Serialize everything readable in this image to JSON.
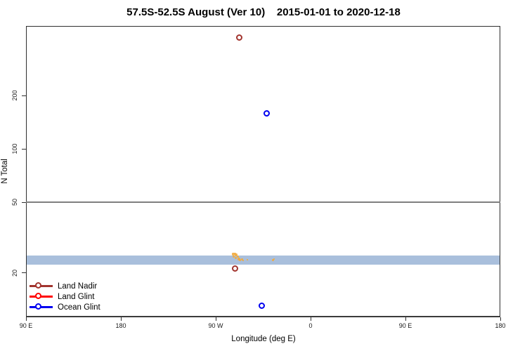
{
  "title": "57.5S-52.5S August (Ver 10)    2015-01-01 to 2020-12-18",
  "chart_data": {
    "type": "scatter",
    "title": "57.5S-52.5S August (Ver 10)    2015-01-01 to 2020-12-18",
    "xlabel": "Longitude (deg E)",
    "ylabel": "N Total",
    "x_domain": [
      90,
      540
    ],
    "y_domain": [
      11.2,
      496
    ],
    "y_scale": "log",
    "grid": "off",
    "x_ticks": [
      {
        "value": 90,
        "label": "90 E"
      },
      {
        "value": 180,
        "label": "180"
      },
      {
        "value": 270,
        "label": "90 W"
      },
      {
        "value": 360,
        "label": "0"
      },
      {
        "value": 450,
        "label": "90 E"
      },
      {
        "value": 540,
        "label": "180"
      }
    ],
    "y_ticks": [
      {
        "value": 20,
        "label": "20"
      },
      {
        "value": 50,
        "label": "50"
      },
      {
        "value": 100,
        "label": "100"
      },
      {
        "value": 200,
        "label": "200"
      }
    ],
    "reference_line": {
      "y": 50,
      "color": "#7f7f7f"
    },
    "band": {
      "y_from": 22.3,
      "y_to": 25.1,
      "color": "#A9BFDC",
      "note": "light-blue horizontal band spanning all longitudes"
    },
    "series": [
      {
        "name": "Land Nadir",
        "color": "#A2342E",
        "marker": "open-circle",
        "points": [
          {
            "lon": 293,
            "n": 424
          },
          {
            "lon": 289,
            "n": 21
          }
        ]
      },
      {
        "name": "Land Glint",
        "color": "#FF0000",
        "marker": "open-circle",
        "points": []
      },
      {
        "name": "Ocean Glint",
        "color": "#0000F0",
        "marker": "open-circle",
        "points": [
          {
            "lon": 319,
            "n": 158
          },
          {
            "lon": 314,
            "n": 13
          }
        ]
      }
    ],
    "cluster_markers": {
      "color": "#F2AA3C",
      "points": [
        {
          "lon": 286.7,
          "n": 25.5,
          "s": 4
        },
        {
          "lon": 288.0,
          "n": 25.7,
          "s": 3
        },
        {
          "lon": 289.3,
          "n": 25.2,
          "s": 4
        },
        {
          "lon": 287.3,
          "n": 24.6,
          "s": 3
        },
        {
          "lon": 289.0,
          "n": 24.2,
          "s": 3
        },
        {
          "lon": 290.7,
          "n": 24.6,
          "s": 3
        },
        {
          "lon": 292.0,
          "n": 24.0,
          "s": 4
        },
        {
          "lon": 293.3,
          "n": 23.6,
          "s": 3
        },
        {
          "lon": 294.7,
          "n": 23.9,
          "s": 3
        },
        {
          "lon": 296.0,
          "n": 23.4,
          "s": 2
        },
        {
          "lon": 300.0,
          "n": 23.6,
          "s": 2
        },
        {
          "lon": 324.0,
          "n": 23.5,
          "s": 3
        },
        {
          "lon": 325.3,
          "n": 23.8,
          "s": 2
        }
      ]
    },
    "legend": {
      "position": "bottom-left",
      "items": [
        {
          "label": "Land Nadir",
          "color": "#A2342E"
        },
        {
          "label": "Land Glint",
          "color": "#FF0000"
        },
        {
          "label": "Ocean Glint",
          "color": "#0000F0"
        }
      ]
    }
  }
}
